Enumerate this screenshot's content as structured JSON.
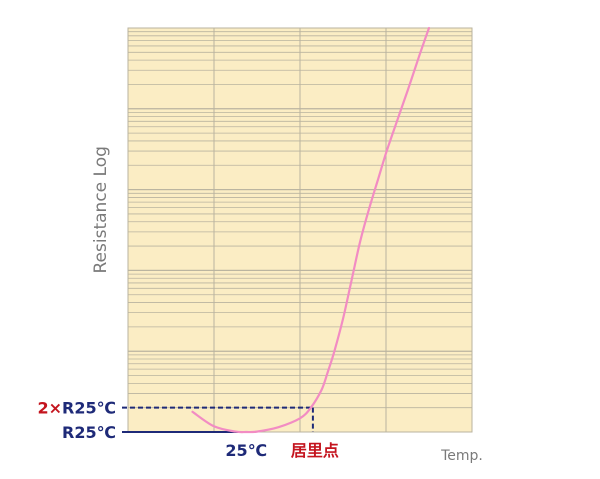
{
  "chart_data": {
    "type": "line",
    "title": "",
    "xlabel": "Temp.",
    "ylabel": "Resistance Log",
    "ylog": true,
    "decades": 5,
    "grid": true,
    "colors": {
      "plot_bg": "#fbedc4",
      "grid": "#b9b39f",
      "curve": "#f28cc3",
      "navy": "#1e2a78",
      "red": "#c4141e",
      "axis_label": "#7a7a7a"
    },
    "series": [
      {
        "x": [
          0,
          10,
          20,
          25,
          30,
          40,
          50,
          55,
          60,
          63,
          66,
          70,
          74,
          78,
          82,
          86,
          90,
          95,
          100,
          105,
          110
        ],
        "y": [
          0.25,
          0.07,
          0.005,
          0.0,
          0.005,
          0.06,
          0.17,
          0.3,
          0.52,
          0.75,
          1.0,
          1.4,
          1.88,
          2.36,
          2.75,
          3.1,
          3.45,
          3.84,
          4.22,
          4.62,
          5.0
        ]
      }
    ],
    "annotations": {
      "r25": {
        "label": "R25℃",
        "y": 0.0,
        "x": 25
      },
      "r25x2": {
        "label_prefix": "2×",
        "label_main": "R25℃",
        "y": 0.301,
        "x": 56
      },
      "x_tick_25": "25℃",
      "x_tick_curie": "居里点"
    }
  }
}
